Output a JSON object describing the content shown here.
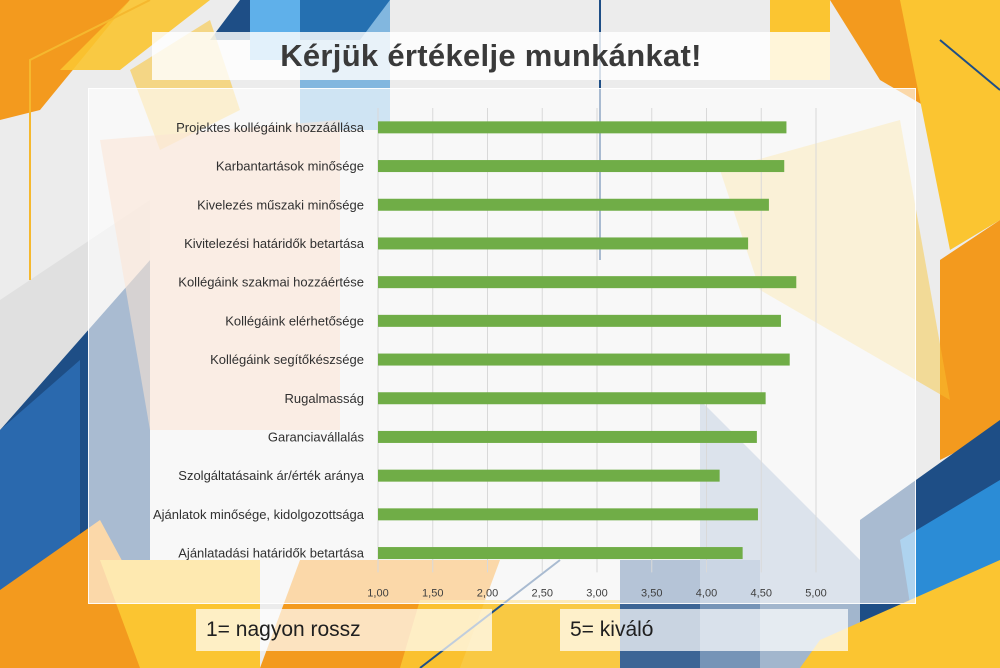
{
  "page": {
    "title": "Kérjük értékelje munkánkat!",
    "legend_low": "1= nagyon rossz",
    "legend_high": "5= kiváló"
  },
  "colors": {
    "bar": "#70ad47",
    "grid": "#d9d9d9",
    "axis_text": "#404040",
    "category_text": "#303030",
    "blue_dark": "#1e4e86",
    "blue_light": "#2b8cd6",
    "orange": "#f39a1e",
    "yellow": "#fbc531"
  },
  "chart_data": {
    "type": "bar",
    "orientation": "horizontal",
    "title": "",
    "xlabel": "",
    "ylabel": "",
    "xlim": [
      1.0,
      5.0
    ],
    "x_ticks": [
      "1,00",
      "1,50",
      "2,00",
      "2,50",
      "3,00",
      "3,50",
      "4,00",
      "4,50",
      "5,00"
    ],
    "grid": true,
    "categories": [
      "Projektes kollégáink hozzáállása",
      "Karbantartások minősége",
      "Kivelezés műszaki minősége",
      "Kivitelezési határidők betartása",
      "Kollégáink szakmai hozzáértése",
      "Kollégáink elérhetősége",
      "Kollégáink segítőkészsége",
      "Rugalmasság",
      "Garanciavállalás",
      "Szolgáltatásaink ár/érték aránya",
      "Ajánlatok minősége, kidolgozottsága",
      "Ajánlatadási határidők betartása"
    ],
    "values": [
      4.73,
      4.71,
      4.57,
      4.38,
      4.82,
      4.68,
      4.76,
      4.54,
      4.46,
      4.12,
      4.47,
      4.33
    ]
  }
}
